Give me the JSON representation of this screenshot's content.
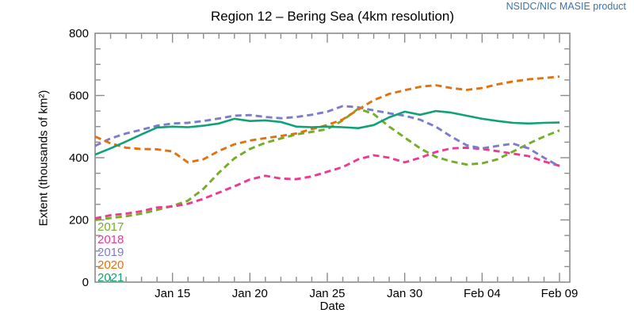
{
  "header": {
    "product_label": "NSIDC/NIC MASIE product",
    "product_label_color": "#3C74A8",
    "title": "Region 12 – Bering Sea (4km resolution)"
  },
  "chart_data": {
    "type": "line",
    "title": "Region 12 – Bering Sea (4km resolution)",
    "xlabel": "Date",
    "ylabel": "Extent (thousands of km²)",
    "ylim": [
      0,
      800
    ],
    "yticks": [
      0,
      200,
      400,
      600,
      800
    ],
    "y_minor_step": 50,
    "grid": false,
    "axis_color": "#8B8B8B",
    "legend_position": "inside-bottom-left",
    "x_dates": [
      "Jan 10",
      "Jan 11",
      "Jan 12",
      "Jan 13",
      "Jan 14",
      "Jan 15",
      "Jan 16",
      "Jan 17",
      "Jan 18",
      "Jan 19",
      "Jan 20",
      "Jan 21",
      "Jan 22",
      "Jan 23",
      "Jan 24",
      "Jan 25",
      "Jan 26",
      "Jan 27",
      "Jan 28",
      "Jan 29",
      "Jan 30",
      "Jan 31",
      "Feb 01",
      "Feb 02",
      "Feb 03",
      "Feb 04",
      "Feb 05",
      "Feb 06",
      "Feb 07",
      "Feb 08",
      "Feb 09"
    ],
    "xtick_labels": [
      "Jan 15",
      "Jan 20",
      "Jan 25",
      "Jan 30",
      "Feb 04",
      "Feb 09"
    ],
    "xtick_day_indices": [
      5,
      10,
      15,
      20,
      25,
      30
    ],
    "series": [
      {
        "name": "2017",
        "color": "#74AD28",
        "style": "dashed",
        "values": [
          200,
          206,
          212,
          220,
          232,
          245,
          262,
          300,
          352,
          398,
          428,
          448,
          462,
          475,
          483,
          492,
          520,
          558,
          540,
          500,
          465,
          430,
          403,
          388,
          378,
          382,
          395,
          420,
          445,
          468,
          488
        ]
      },
      {
        "name": "2018",
        "color": "#EC3A92",
        "style": "dashed",
        "values": [
          205,
          215,
          220,
          228,
          240,
          243,
          252,
          268,
          288,
          308,
          330,
          342,
          333,
          331,
          340,
          355,
          370,
          395,
          408,
          400,
          385,
          400,
          418,
          430,
          432,
          428,
          421,
          413,
          405,
          388,
          374
        ]
      },
      {
        "name": "2019",
        "color": "#7D7CC9",
        "style": "dashed",
        "values": [
          438,
          462,
          478,
          490,
          503,
          510,
          512,
          518,
          526,
          535,
          537,
          531,
          527,
          531,
          538,
          548,
          566,
          562,
          552,
          543,
          535,
          522,
          500,
          468,
          440,
          430,
          438,
          445,
          430,
          400,
          372
        ]
      },
      {
        "name": "2020",
        "color": "#E2710F",
        "style": "dashed",
        "values": [
          468,
          446,
          432,
          428,
          427,
          420,
          385,
          395,
          422,
          443,
          455,
          463,
          470,
          478,
          492,
          505,
          523,
          555,
          585,
          605,
          617,
          628,
          633,
          624,
          618,
          624,
          636,
          645,
          652,
          656,
          661
        ]
      },
      {
        "name": "2021",
        "color": "#10A277",
        "style": "solid",
        "values": [
          410,
          430,
          452,
          475,
          497,
          500,
          498,
          503,
          510,
          525,
          518,
          520,
          515,
          500,
          498,
          500,
          498,
          495,
          505,
          530,
          548,
          538,
          550,
          545,
          535,
          525,
          518,
          512,
          510,
          512,
          513
        ]
      }
    ]
  }
}
